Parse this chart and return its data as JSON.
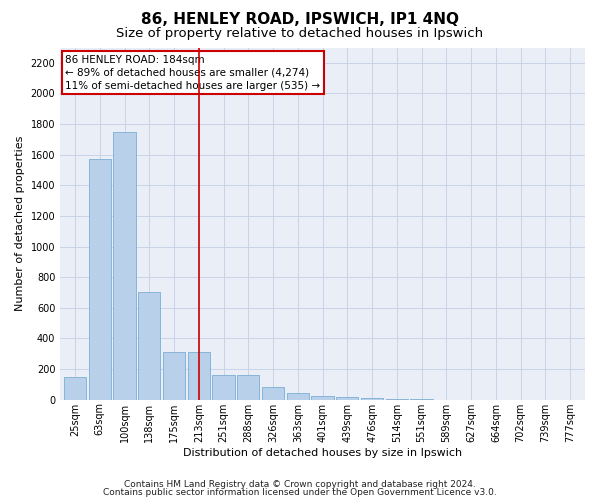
{
  "title": "86, HENLEY ROAD, IPSWICH, IP1 4NQ",
  "subtitle": "Size of property relative to detached houses in Ipswich",
  "xlabel": "Distribution of detached houses by size in Ipswich",
  "ylabel": "Number of detached properties",
  "footnote1": "Contains HM Land Registry data © Crown copyright and database right 2024.",
  "footnote2": "Contains public sector information licensed under the Open Government Licence v3.0.",
  "categories": [
    "25sqm",
    "63sqm",
    "100sqm",
    "138sqm",
    "175sqm",
    "213sqm",
    "251sqm",
    "288sqm",
    "326sqm",
    "363sqm",
    "401sqm",
    "439sqm",
    "476sqm",
    "514sqm",
    "551sqm",
    "589sqm",
    "627sqm",
    "664sqm",
    "702sqm",
    "739sqm",
    "777sqm"
  ],
  "values": [
    150,
    1575,
    1750,
    700,
    310,
    310,
    160,
    160,
    80,
    45,
    25,
    20,
    10,
    5,
    2,
    1,
    0,
    0,
    0,
    0,
    0
  ],
  "bar_color": "#b8d0ea",
  "bar_edge_color": "#7aadd4",
  "vline_x": 5.0,
  "vline_color": "#cc0000",
  "annotation_text": "86 HENLEY ROAD: 184sqm\n← 89% of detached houses are smaller (4,274)\n11% of semi-detached houses are larger (535) →",
  "annotation_box_color": "#ffffff",
  "annotation_box_edge": "#cc0000",
  "ylim": [
    0,
    2300
  ],
  "yticks": [
    0,
    200,
    400,
    600,
    800,
    1000,
    1200,
    1400,
    1600,
    1800,
    2000,
    2200
  ],
  "grid_color": "#c8d4e8",
  "background_color": "#eaeff7",
  "fig_background": "#ffffff",
  "title_fontsize": 11,
  "subtitle_fontsize": 9.5,
  "axis_label_fontsize": 8,
  "tick_fontsize": 7,
  "annotation_fontsize": 7.5,
  "footnote_fontsize": 6.5
}
